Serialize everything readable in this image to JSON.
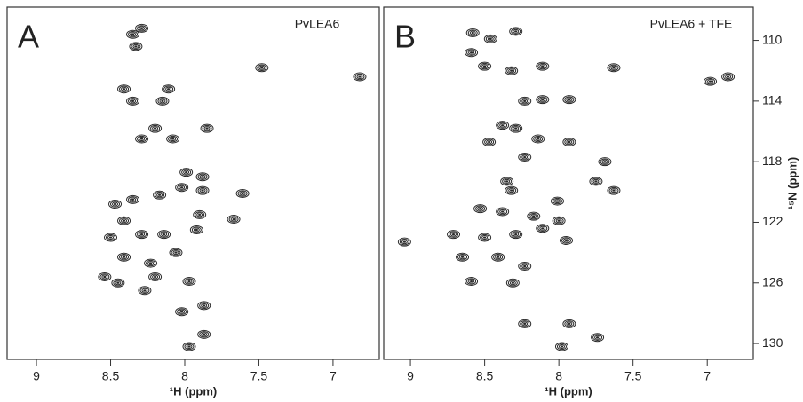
{
  "chart_data": [
    {
      "type": "scatter",
      "panel_label": "A",
      "title": "PvLEA6",
      "xlabel": "¹H (ppm)",
      "color": "#2b2b2b",
      "x": [
        8.29,
        8.35,
        8.33,
        7.48,
        6.82,
        8.11,
        8.41,
        8.15,
        8.35,
        7.85,
        8.2,
        8.08,
        8.29,
        7.99,
        7.88,
        7.88,
        7.61,
        8.02,
        8.17,
        8.35,
        8.47,
        7.9,
        7.67,
        7.92,
        8.41,
        8.29,
        8.14,
        8.5,
        8.41,
        8.06,
        8.23,
        8.2,
        8.54,
        8.45,
        8.27,
        7.97,
        7.87,
        8.02,
        7.87,
        7.97
      ],
      "y": [
        109.2,
        109.6,
        110.4,
        111.8,
        112.4,
        113.2,
        113.2,
        114.0,
        114.0,
        115.8,
        115.8,
        116.5,
        116.5,
        118.7,
        119.0,
        119.9,
        120.1,
        119.7,
        120.2,
        120.5,
        120.8,
        121.5,
        121.8,
        122.5,
        121.9,
        122.8,
        122.8,
        123.0,
        124.3,
        124.0,
        124.7,
        125.6,
        125.6,
        126.0,
        126.5,
        125.9,
        127.5,
        127.9,
        129.4,
        130.2
      ],
      "xlim": [
        9.198,
        6.688
      ],
      "xticks": [
        9,
        8.5,
        8,
        7.5,
        7
      ],
      "ylim": [
        107.8,
        131.05
      ]
    },
    {
      "type": "scatter",
      "panel_label": "B",
      "title": "PvLEA6 + TFE",
      "xlabel": "¹H (ppm)",
      "ylabel": "¹⁵N (ppm)",
      "color": "#2b2b2b",
      "x": [
        8.29,
        8.58,
        8.46,
        8.59,
        8.5,
        8.11,
        8.32,
        7.63,
        6.86,
        6.98,
        8.23,
        8.11,
        7.93,
        8.38,
        8.29,
        8.47,
        8.14,
        7.93,
        8.23,
        7.69,
        7.63,
        7.75,
        8.35,
        8.32,
        8.01,
        8.53,
        8.38,
        8.17,
        8.0,
        8.11,
        8.71,
        8.5,
        8.29,
        7.95,
        9.04,
        8.65,
        8.41,
        8.23,
        8.31,
        8.59,
        8.23,
        7.93,
        7.98,
        7.74
      ],
      "y": [
        109.4,
        109.5,
        109.9,
        110.8,
        111.7,
        111.7,
        112.0,
        111.8,
        112.4,
        112.7,
        114.0,
        113.9,
        113.9,
        115.6,
        115.8,
        116.7,
        116.5,
        116.7,
        117.7,
        118.0,
        119.9,
        119.3,
        119.3,
        119.9,
        120.6,
        121.1,
        121.3,
        121.6,
        121.9,
        122.4,
        122.8,
        123.0,
        122.8,
        123.2,
        123.3,
        124.3,
        124.3,
        124.9,
        126.0,
        125.9,
        128.7,
        128.7,
        130.2,
        129.6
      ],
      "xlim": [
        9.18,
        6.69
      ],
      "xticks": [
        9,
        8.5,
        8,
        7.5,
        7
      ],
      "ylim": [
        107.8,
        131.05
      ],
      "yticks": [
        110,
        114,
        118,
        122,
        126,
        130
      ]
    }
  ]
}
